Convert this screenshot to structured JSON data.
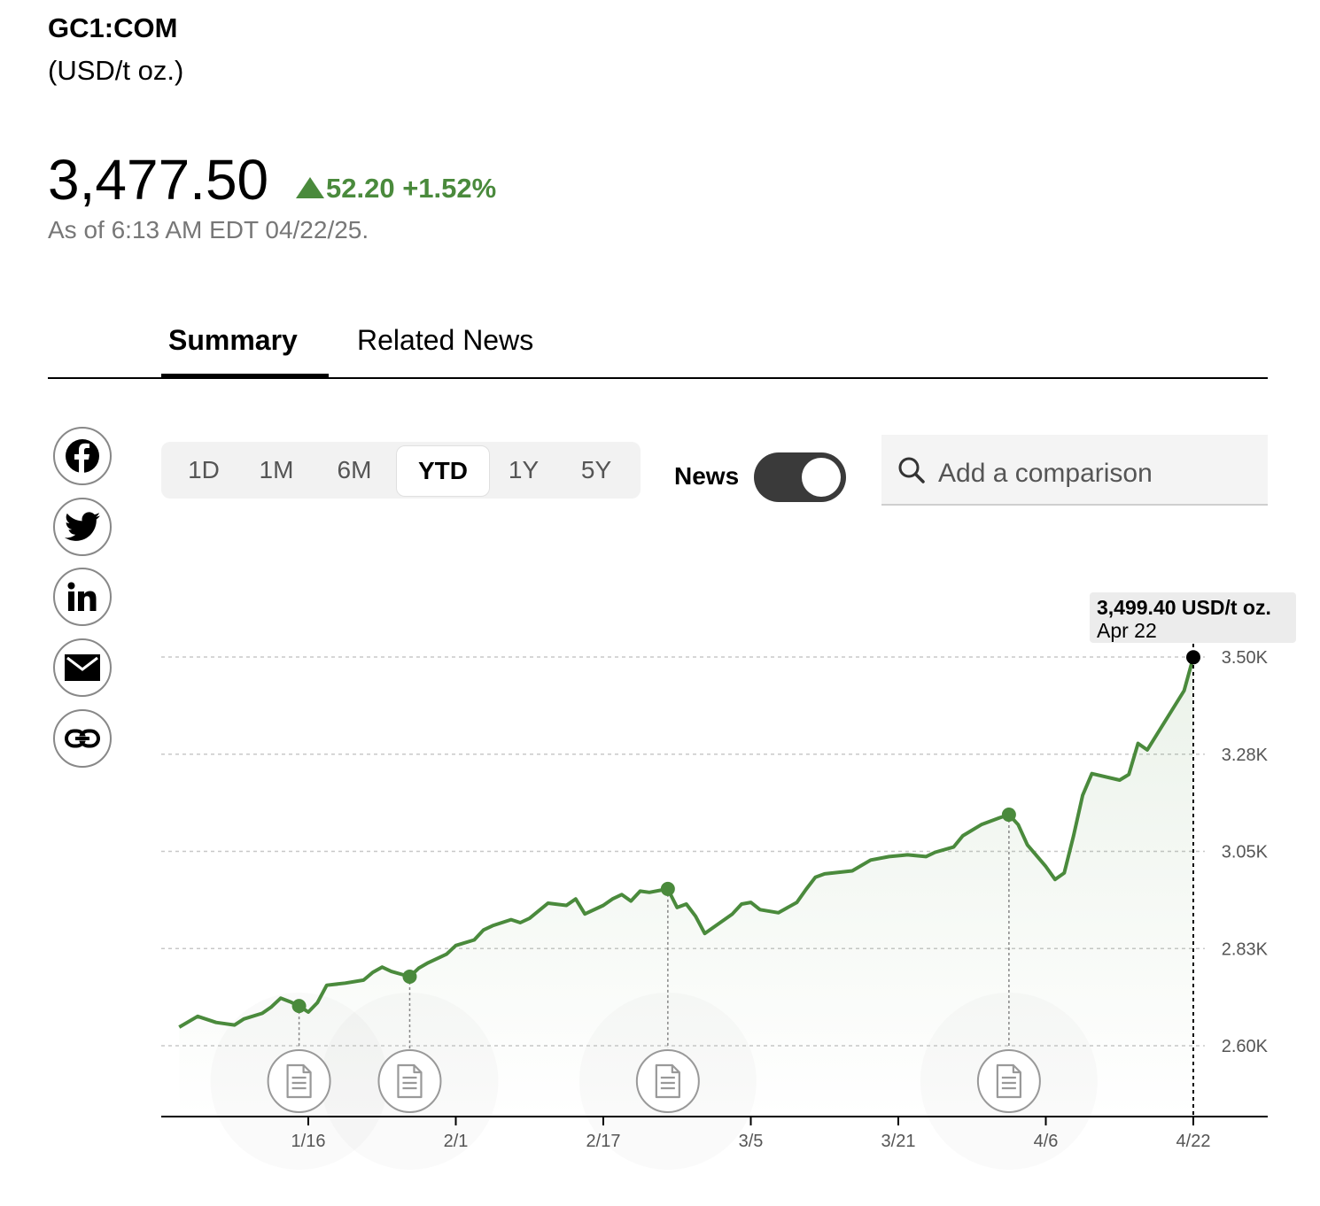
{
  "header": {
    "ticker": "GC1:COM",
    "unit": "(USD/t oz.)",
    "price": "3,477.50",
    "change": "52.20",
    "change_pct": "+1.52%",
    "as_of": "As of 6:13 AM EDT 04/22/25.",
    "up_color": "#4a8a3c"
  },
  "tabs": [
    {
      "label": "Summary",
      "active": true
    },
    {
      "label": "Related News",
      "active": false
    }
  ],
  "share_icons": [
    "facebook-icon",
    "twitter-icon",
    "linkedin-icon",
    "email-icon",
    "link-icon"
  ],
  "periods": [
    {
      "label": "1D",
      "active": false
    },
    {
      "label": "1M",
      "active": false
    },
    {
      "label": "6M",
      "active": false
    },
    {
      "label": "YTD",
      "active": true
    },
    {
      "label": "1Y",
      "active": false
    },
    {
      "label": "5Y",
      "active": false
    }
  ],
  "news_toggle": {
    "label": "News",
    "on": true
  },
  "compare": {
    "placeholder": "Add a comparison"
  },
  "tooltip": {
    "value": "3,499.40 USD/t oz.",
    "date": "Apr 22"
  },
  "chart_data": {
    "type": "area",
    "y_ticks": [
      "3.50K",
      "3.28K",
      "3.05K",
      "2.83K",
      "2.60K"
    ],
    "y_tick_values": [
      3500,
      3275,
      3050,
      2825,
      2600
    ],
    "x_ticks": [
      "1/16",
      "2/1",
      "2/17",
      "3/5",
      "3/21",
      "4/6",
      "4/22"
    ],
    "x_tick_dates": [
      "2025-01-16",
      "2025-02-01",
      "2025-02-17",
      "2025-03-05",
      "2025-03-21",
      "2025-04-06",
      "2025-04-22"
    ],
    "line_color": "#4a8a3c",
    "grid": true,
    "series": [
      {
        "points": [
          [
            "2025-01-02",
            2643
          ],
          [
            "2025-01-04",
            2668
          ],
          [
            "2025-01-06",
            2654
          ],
          [
            "2025-01-08",
            2648
          ],
          [
            "2025-01-09",
            2662
          ],
          [
            "2025-01-11",
            2675
          ],
          [
            "2025-01-12",
            2690
          ],
          [
            "2025-01-13",
            2710
          ],
          [
            "2025-01-14",
            2702
          ],
          [
            "2025-01-15",
            2692
          ],
          [
            "2025-01-16",
            2678
          ],
          [
            "2025-01-17",
            2700
          ],
          [
            "2025-01-18",
            2740
          ],
          [
            "2025-01-20",
            2745
          ],
          [
            "2025-01-22",
            2752
          ],
          [
            "2025-01-23",
            2770
          ],
          [
            "2025-01-24",
            2782
          ],
          [
            "2025-01-25",
            2772
          ],
          [
            "2025-01-27",
            2760
          ],
          [
            "2025-01-28",
            2780
          ],
          [
            "2025-01-29",
            2792
          ],
          [
            "2025-01-31",
            2812
          ],
          [
            "2025-02-01",
            2832
          ],
          [
            "2025-02-03",
            2845
          ],
          [
            "2025-02-04",
            2868
          ],
          [
            "2025-02-05",
            2878
          ],
          [
            "2025-02-07",
            2892
          ],
          [
            "2025-02-08",
            2885
          ],
          [
            "2025-02-09",
            2895
          ],
          [
            "2025-02-11",
            2930
          ],
          [
            "2025-02-13",
            2925
          ],
          [
            "2025-02-14",
            2940
          ],
          [
            "2025-02-15",
            2905
          ],
          [
            "2025-02-17",
            2925
          ],
          [
            "2025-02-18",
            2940
          ],
          [
            "2025-02-19",
            2950
          ],
          [
            "2025-02-20",
            2935
          ],
          [
            "2025-02-21",
            2958
          ],
          [
            "2025-02-22",
            2955
          ],
          [
            "2025-02-24",
            2963
          ],
          [
            "2025-02-25",
            2920
          ],
          [
            "2025-02-26",
            2928
          ],
          [
            "2025-02-27",
            2900
          ],
          [
            "2025-02-28",
            2860
          ],
          [
            "2025-03-03",
            2905
          ],
          [
            "2025-03-04",
            2928
          ],
          [
            "2025-03-05",
            2932
          ],
          [
            "2025-03-06",
            2915
          ],
          [
            "2025-03-08",
            2908
          ],
          [
            "2025-03-10",
            2932
          ],
          [
            "2025-03-11",
            2962
          ],
          [
            "2025-03-12",
            2990
          ],
          [
            "2025-03-13",
            2998
          ],
          [
            "2025-03-16",
            3005
          ],
          [
            "2025-03-18",
            3030
          ],
          [
            "2025-03-20",
            3038
          ],
          [
            "2025-03-22",
            3042
          ],
          [
            "2025-03-24",
            3038
          ],
          [
            "2025-03-25",
            3048
          ],
          [
            "2025-03-27",
            3060
          ],
          [
            "2025-03-28",
            3086
          ],
          [
            "2025-03-30",
            3112
          ],
          [
            "2025-04-01",
            3128
          ],
          [
            "2025-04-02",
            3135
          ],
          [
            "2025-04-03",
            3112
          ],
          [
            "2025-04-04",
            3065
          ],
          [
            "2025-04-06",
            3015
          ],
          [
            "2025-04-07",
            2985
          ],
          [
            "2025-04-08",
            3000
          ],
          [
            "2025-04-09",
            3085
          ],
          [
            "2025-04-10",
            3180
          ],
          [
            "2025-04-11",
            3230
          ],
          [
            "2025-04-14",
            3215
          ],
          [
            "2025-04-15",
            3228
          ],
          [
            "2025-04-16",
            3300
          ],
          [
            "2025-04-17",
            3285
          ],
          [
            "2025-04-21",
            3422
          ],
          [
            "2025-04-22",
            3499.4
          ]
        ]
      }
    ],
    "news_markers": [
      "2025-01-15",
      "2025-01-27",
      "2025-02-24",
      "2025-04-02"
    ],
    "highlight": {
      "date": "2025-04-22",
      "value": 3499.4
    }
  }
}
